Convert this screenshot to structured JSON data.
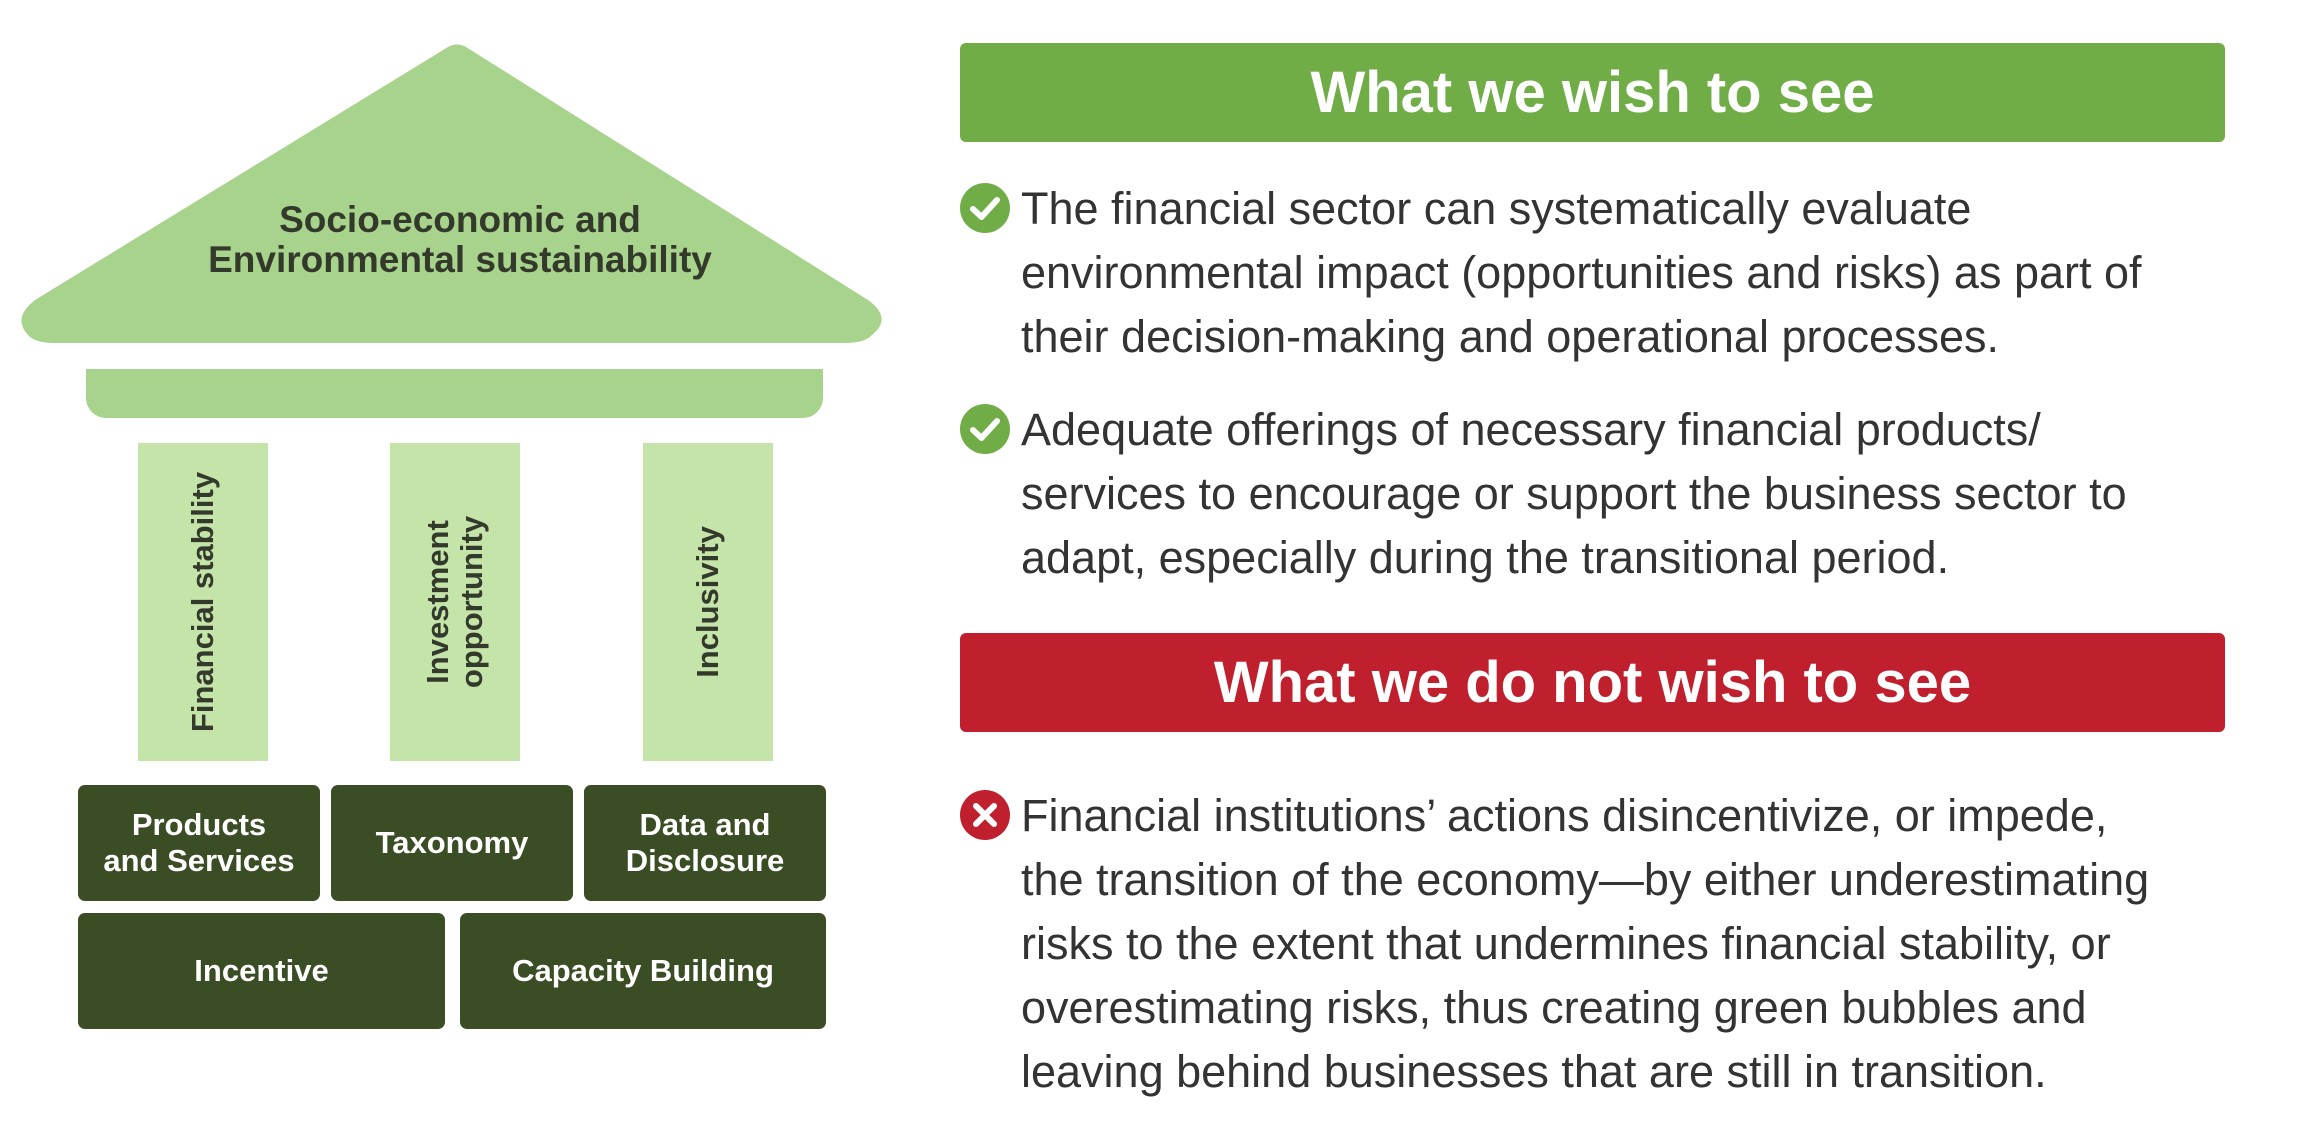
{
  "diagram": {
    "roof_title_lines": [
      "Socio-economic and",
      "Environmental sustainability"
    ],
    "pillars": [
      {
        "lines": [
          "Financial stability"
        ]
      },
      {
        "lines": [
          "Investment",
          "opportunity"
        ]
      },
      {
        "lines": [
          "Inclusivity"
        ]
      }
    ],
    "foundation_row1": [
      {
        "lines": [
          "Products",
          "and Services"
        ]
      },
      {
        "lines": [
          "Taxonomy"
        ]
      },
      {
        "lines": [
          "Data and",
          "Disclosure"
        ]
      }
    ],
    "foundation_row2": [
      {
        "lines": [
          "Incentive"
        ]
      },
      {
        "lines": [
          "Capacity Building"
        ]
      }
    ],
    "colors": {
      "roof": "#a8d38c",
      "pillar": "#c4e4a9",
      "foundation": "#3b4d24"
    }
  },
  "wish": {
    "heading": "What we wish to see",
    "color": "#70ad47",
    "icon": "check-circle-icon",
    "items": [
      {
        "lines": [
          "The financial sector can systematically evaluate",
          "environmental impact (opportunities and risks) as part of",
          "their decision-making and operational processes."
        ]
      },
      {
        "lines": [
          "Adequate offerings of necessary financial products/",
          "services to encourage or support the business sector to",
          "adapt, especially during the transitional period."
        ]
      }
    ]
  },
  "not_wish": {
    "heading": "What we do not wish to see",
    "color": "#c0202d",
    "icon": "x-circle-icon",
    "items": [
      {
        "lines": [
          "Financial institutions’ actions disincentivize, or impede,",
          "the transition of the economy—by either underestimating",
          "risks to the extent that undermines financial stability, or",
          "overestimating risks, thus creating green bubbles and",
          "leaving behind businesses that are still in transition."
        ]
      }
    ]
  }
}
